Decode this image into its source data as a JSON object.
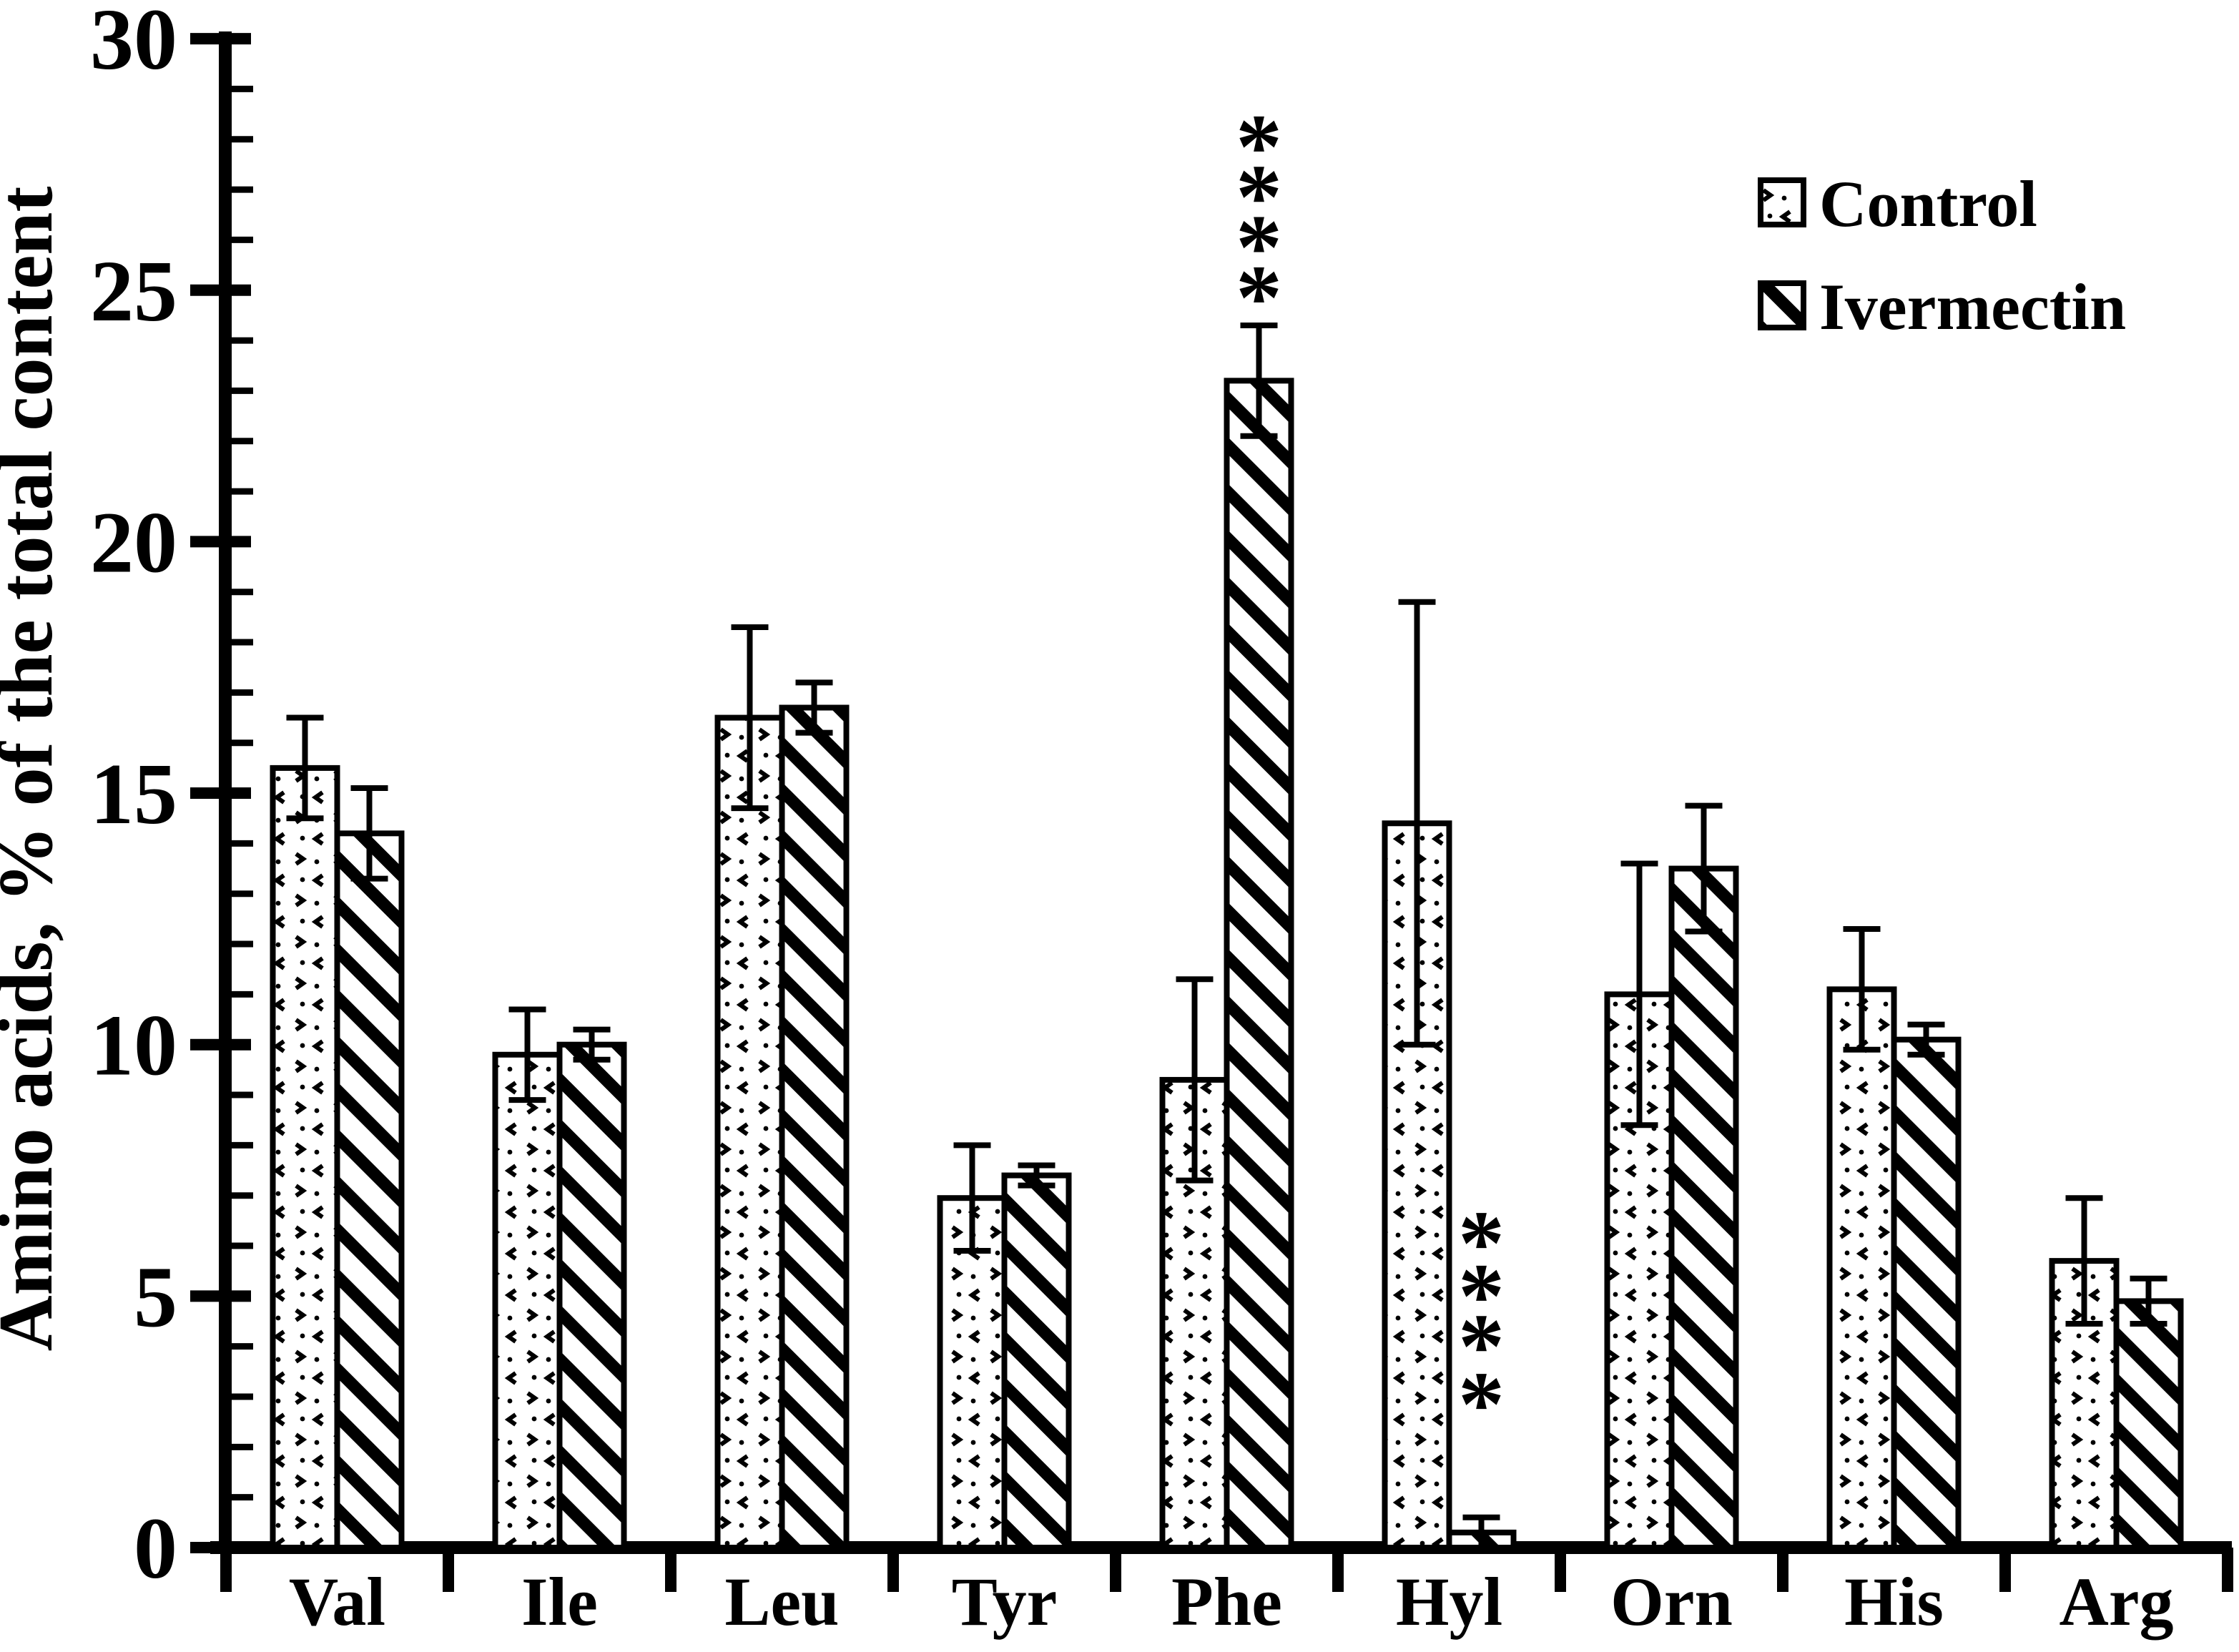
{
  "figure": {
    "background_color": "#ffffff",
    "ink_color": "#000000",
    "title": ""
  },
  "chart_data": {
    "type": "bar",
    "title": "",
    "xlabel": "",
    "ylabel": "Amino acids, % of the total content",
    "ylim": [
      0,
      30
    ],
    "ytick_major": [
      0,
      5,
      10,
      15,
      20,
      25,
      30
    ],
    "ytick_labels": [
      "0",
      "5",
      "10",
      "15",
      "20",
      "25",
      "30"
    ],
    "ytick_minor_step": 1,
    "grid": false,
    "legend_position": "upper-right",
    "categories": [
      "Val",
      "Ile",
      "Leu",
      "Tyr",
      "Phe",
      "Hyl",
      "Orn",
      "His",
      "Arg"
    ],
    "series": [
      {
        "name": "Control",
        "pattern": "dotted-speckle",
        "values": [
          15.5,
          9.8,
          16.5,
          6.95,
          9.3,
          14.4,
          11.0,
          11.1,
          5.7
        ],
        "errors": [
          1.0,
          0.9,
          1.8,
          1.05,
          2.0,
          4.4,
          2.6,
          1.2,
          1.25
        ]
      },
      {
        "name": "Ivermectin",
        "pattern": "diagonal-hatch",
        "values": [
          14.2,
          10.0,
          16.7,
          7.4,
          23.2,
          0.3,
          13.5,
          10.1,
          4.9
        ],
        "errors": [
          0.9,
          0.3,
          0.5,
          0.2,
          1.1,
          0.3,
          1.25,
          0.3,
          0.45
        ]
      }
    ],
    "annotations": [
      {
        "category": "Phe",
        "series": "Ivermectin",
        "text": "****",
        "star_char": "*",
        "star_values": [
          28.3,
          27.3,
          26.3,
          25.3
        ]
      },
      {
        "category": "Hyl",
        "series": "Ivermectin",
        "text": "****",
        "star_char": "*",
        "star_values": [
          6.5,
          5.45,
          4.45,
          3.3
        ]
      }
    ]
  }
}
